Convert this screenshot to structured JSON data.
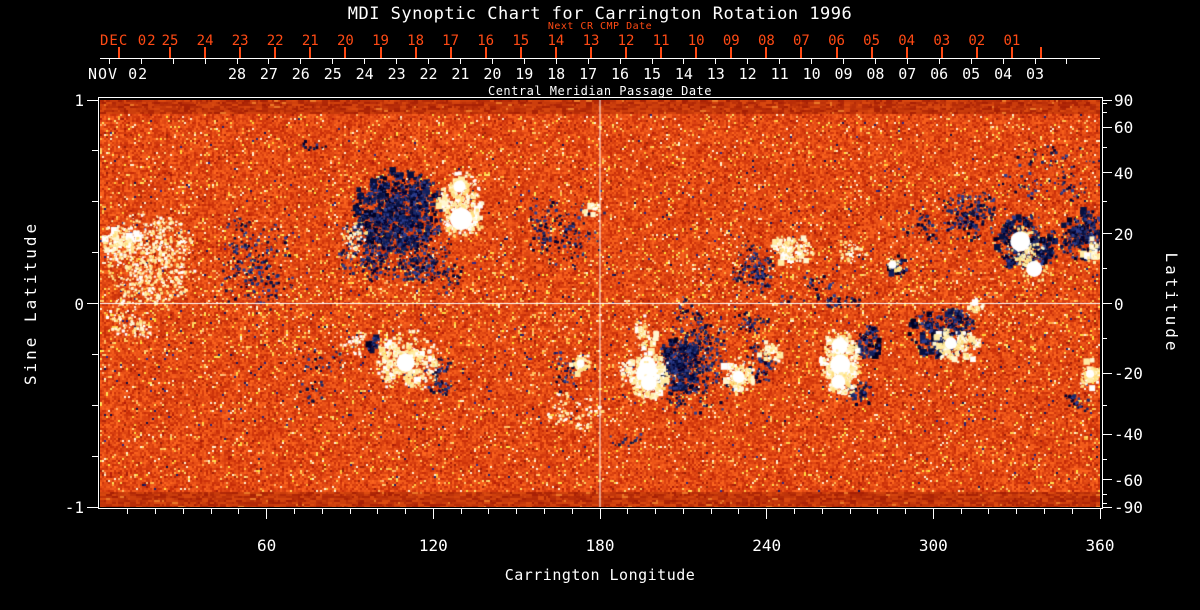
{
  "title": "MDI Synoptic Chart for Carrington Rotation 1996",
  "colors": {
    "background": "#000000",
    "foreground": "#ffffff",
    "next_cr_accent": "#ff4a14",
    "quiet_sun_orange": "#e2431a",
    "negative_polarity_blue": "#0a1448",
    "positive_polarity_white": "#ffffff"
  },
  "top_axes": {
    "next_cr": {
      "title": "Next CR CMP Date",
      "month_label": "DEC 02",
      "day_ticks": [
        "25",
        "24",
        "23",
        "22",
        "21",
        "20",
        "19",
        "18",
        "17",
        "16",
        "15",
        "14",
        "13",
        "12",
        "11",
        "10",
        "09",
        "08",
        "07",
        "06",
        "05",
        "04",
        "03",
        "02",
        "01"
      ]
    },
    "cmp": {
      "title": "Central Meridian Passage Date",
      "month_label": "NOV 02",
      "day_ticks": [
        "28",
        "27",
        "26",
        "25",
        "24",
        "23",
        "22",
        "21",
        "20",
        "19",
        "18",
        "17",
        "16",
        "15",
        "14",
        "13",
        "12",
        "11",
        "10",
        "09",
        "08",
        "07",
        "06",
        "05",
        "04",
        "03"
      ]
    }
  },
  "chart_data": {
    "type": "heatmap",
    "title": "MDI Synoptic Chart for Carrington Rotation 1996",
    "xlabel": "Carrington Longitude",
    "ylabel_left": "Sine Latitude",
    "ylabel_right": "Latitude",
    "xlim": [
      0,
      360
    ],
    "ylim": [
      -1,
      1
    ],
    "x_tick_labels": [
      "60",
      "120",
      "180",
      "240",
      "300",
      "360"
    ],
    "x_minor_tick_step_deg": 10,
    "y_left_tick_labels": [
      "1",
      "0",
      "-1"
    ],
    "y_left_minor_tick_step": 0.25,
    "y_right_tick_labels": [
      "90",
      "60",
      "40",
      "20",
      "0",
      "-20",
      "-40",
      "-60",
      "-90"
    ],
    "y_right_minor_ticks_deg": [
      10,
      30,
      50,
      70,
      80,
      -10,
      -30,
      -50,
      -70,
      -80
    ],
    "grid_lines": {
      "longitude": 180,
      "sine_latitude": 0
    },
    "colormap_meaning": "orange = quiet Sun field, dark blue/black = negative magnetic polarity, white/yellow = positive magnetic polarity",
    "active_regions": [
      {
        "lon": 16,
        "slat": 0.2,
        "rlon": 18,
        "rsin": 0.25,
        "pol": "pos",
        "den": 0.5
      },
      {
        "lon": 8,
        "slat": 0.29,
        "rlon": 7,
        "rsin": 0.09,
        "pol": "pos",
        "den": 0.8
      },
      {
        "lon": 9,
        "slat": -0.1,
        "rlon": 10,
        "rsin": 0.1,
        "pol": "pos",
        "den": 0.3
      },
      {
        "lon": 55,
        "slat": 0.2,
        "rlon": 15,
        "rsin": 0.24,
        "pol": "neg",
        "den": 0.2
      },
      {
        "lon": 107,
        "slat": 0.46,
        "rlon": 16,
        "rsin": 0.2,
        "pol": "neg",
        "den": 0.95
      },
      {
        "lon": 104,
        "slat": 0.26,
        "rlon": 22,
        "rsin": 0.16,
        "pol": "neg",
        "den": 0.45
      },
      {
        "lon": 118,
        "slat": 0.14,
        "rlon": 14,
        "rsin": 0.09,
        "pol": "neg",
        "den": 0.3
      },
      {
        "lon": 130,
        "slat": 0.49,
        "rlon": 8,
        "rsin": 0.16,
        "pol": "pos",
        "den": 0.9
      },
      {
        "lon": 90,
        "slat": 0.31,
        "rlon": 6,
        "rsin": 0.1,
        "pol": "pos",
        "den": 0.35
      },
      {
        "lon": 167,
        "slat": 0.37,
        "rlon": 16,
        "rsin": 0.19,
        "pol": "neg",
        "den": 0.2
      },
      {
        "lon": 177,
        "slat": 0.45,
        "rlon": 3,
        "rsin": 0.05,
        "pol": "pos",
        "den": 0.8
      },
      {
        "lon": 234,
        "slat": 0.17,
        "rlon": 9,
        "rsin": 0.14,
        "pol": "neg",
        "den": 0.4
      },
      {
        "lon": 248.5,
        "slat": 0.26,
        "rlon": 8,
        "rsin": 0.08,
        "pol": "pos",
        "den": 0.75
      },
      {
        "lon": 270,
        "slat": 0.27,
        "rlon": 7,
        "rsin": 0.06,
        "pol": "pos",
        "den": 0.4
      },
      {
        "lon": 287,
        "slat": 0.185,
        "rlon": 3.5,
        "rsin": 0.055,
        "pol": "neg",
        "den": 0.95
      },
      {
        "lon": 258,
        "slat": 0.05,
        "rlon": 18,
        "rsin": 0.09,
        "pol": "neg",
        "den": 0.15
      },
      {
        "lon": 295,
        "slat": 0.37,
        "rlon": 6,
        "rsin": 0.08,
        "pol": "neg",
        "den": 0.35
      },
      {
        "lon": 313,
        "slat": 0.44,
        "rlon": 11,
        "rsin": 0.13,
        "pol": "neg",
        "den": 0.5
      },
      {
        "lon": 333,
        "slat": 0.3,
        "rlon": 11,
        "rsin": 0.14,
        "pol": "neg",
        "den": 0.75
      },
      {
        "lon": 334,
        "slat": 0.24,
        "rlon": 6,
        "rsin": 0.1,
        "pol": "pos",
        "den": 0.5
      },
      {
        "lon": 353.5,
        "slat": 0.335,
        "rlon": 8,
        "rsin": 0.13,
        "pol": "neg",
        "den": 0.8
      },
      {
        "lon": 357.5,
        "slat": 0.265,
        "rlon": 4,
        "rsin": 0.06,
        "pol": "pos",
        "den": 0.8
      },
      {
        "lon": 339,
        "slat": 0.66,
        "rlon": 18,
        "rsin": 0.16,
        "pol": "neg",
        "den": 0.08
      },
      {
        "lon": 352,
        "slat": 0.58,
        "rlon": 8,
        "rsin": 0.1,
        "pol": "neg",
        "den": 0.12
      },
      {
        "lon": 73,
        "slat": 0.73,
        "rlon": 10,
        "rsin": 0.08,
        "pol": "neg",
        "den": 0.06
      },
      {
        "lon": 110.5,
        "slat": -0.275,
        "rlon": 12,
        "rsin": 0.15,
        "pol": "pos",
        "den": 0.6
      },
      {
        "lon": 124,
        "slat": -0.35,
        "rlon": 8,
        "rsin": 0.1,
        "pol": "neg",
        "den": 0.35
      },
      {
        "lon": 91,
        "slat": -0.185,
        "rlon": 5,
        "rsin": 0.07,
        "pol": "pos",
        "den": 0.5
      },
      {
        "lon": 99,
        "slat": -0.19,
        "rlon": 3,
        "rsin": 0.05,
        "pol": "neg",
        "den": 0.6
      },
      {
        "lon": 80,
        "slat": -0.33,
        "rlon": 12,
        "rsin": 0.15,
        "pol": "neg",
        "den": 0.1
      },
      {
        "lon": 173,
        "slat": -0.295,
        "rlon": 3.5,
        "rsin": 0.06,
        "pol": "pos",
        "den": 0.7
      },
      {
        "lon": 168,
        "slat": -0.33,
        "rlon": 8,
        "rsin": 0.1,
        "pol": "neg",
        "den": 0.2
      },
      {
        "lon": 171,
        "slat": -0.52,
        "rlon": 10,
        "rsin": 0.12,
        "pol": "pos",
        "den": 0.25
      },
      {
        "lon": 197.3,
        "slat": -0.34,
        "rlon": 7,
        "rsin": 0.13,
        "pol": "pos",
        "den": 0.9
      },
      {
        "lon": 192,
        "slat": -0.38,
        "rlon": 6,
        "rsin": 0.12,
        "pol": "pos",
        "den": 0.4
      },
      {
        "lon": 196,
        "slat": -0.14,
        "rlon": 5,
        "rsin": 0.08,
        "pol": "pos",
        "den": 0.6
      },
      {
        "lon": 208,
        "slat": -0.3,
        "rlon": 8,
        "rsin": 0.14,
        "pol": "neg",
        "den": 0.9
      },
      {
        "lon": 214,
        "slat": -0.32,
        "rlon": 14,
        "rsin": 0.25,
        "pol": "neg",
        "den": 0.35
      },
      {
        "lon": 212,
        "slat": -0.05,
        "rlon": 5,
        "rsin": 0.1,
        "pol": "neg",
        "den": 0.25
      },
      {
        "lon": 235,
        "slat": -0.06,
        "rlon": 6,
        "rsin": 0.08,
        "pol": "neg",
        "den": 0.3
      },
      {
        "lon": 190,
        "slat": -0.62,
        "rlon": 10,
        "rsin": 0.08,
        "pol": "neg",
        "den": 0.07
      },
      {
        "lon": 229.9,
        "slat": -0.35,
        "rlon": 6,
        "rsin": 0.1,
        "pol": "pos",
        "den": 0.75
      },
      {
        "lon": 236.4,
        "slat": -0.285,
        "rlon": 7,
        "rsin": 0.1,
        "pol": "neg",
        "den": 0.4
      },
      {
        "lon": 241,
        "slat": -0.245,
        "rlon": 4,
        "rsin": 0.06,
        "pol": "pos",
        "den": 0.7
      },
      {
        "lon": 266.5,
        "slat": -0.285,
        "rlon": 7,
        "rsin": 0.17,
        "pol": "pos",
        "den": 0.95
      },
      {
        "lon": 276,
        "slat": -0.21,
        "rlon": 5,
        "rsin": 0.08,
        "pol": "neg",
        "den": 0.6
      },
      {
        "lon": 273,
        "slat": -0.445,
        "rlon": 5,
        "rsin": 0.07,
        "pol": "neg",
        "den": 0.5
      },
      {
        "lon": 277.5,
        "slat": -0.125,
        "rlon": 4,
        "rsin": 0.06,
        "pol": "neg",
        "den": 0.5
      },
      {
        "lon": 302,
        "slat": -0.145,
        "rlon": 13,
        "rsin": 0.12,
        "pol": "neg",
        "den": 0.6
      },
      {
        "lon": 306,
        "slat": -0.2,
        "rlon": 6,
        "rsin": 0.09,
        "pol": "pos",
        "den": 0.8
      },
      {
        "lon": 313.5,
        "slat": -0.21,
        "rlon": 4,
        "rsin": 0.07,
        "pol": "pos",
        "den": 0.6
      },
      {
        "lon": 315,
        "slat": 0.005,
        "rlon": 3,
        "rsin": 0.05,
        "pol": "pos",
        "den": 0.6
      },
      {
        "lon": 309,
        "slat": -0.07,
        "rlon": 6,
        "rsin": 0.08,
        "pol": "neg",
        "den": 0.3
      },
      {
        "lon": 356.4,
        "slat": -0.345,
        "rlon": 4,
        "rsin": 0.08,
        "pol": "pos",
        "den": 0.7
      },
      {
        "lon": 352,
        "slat": -0.47,
        "rlon": 6,
        "rsin": 0.08,
        "pol": "neg",
        "den": 0.25
      }
    ],
    "bright_cores": [
      {
        "lon": 130,
        "slat": 0.415,
        "r": 11
      },
      {
        "lon": 129.4,
        "slat": 0.575,
        "r": 6
      },
      {
        "lon": 285.3,
        "slat": 0.19,
        "r": 4
      },
      {
        "lon": 331.3,
        "slat": 0.305,
        "r": 10
      },
      {
        "lon": 336.3,
        "slat": 0.17,
        "r": 8
      },
      {
        "lon": 110,
        "slat": -0.29,
        "r": 9
      },
      {
        "lon": 197,
        "slat": -0.3,
        "r": 8
      },
      {
        "lon": 197,
        "slat": -0.345,
        "r": 11
      },
      {
        "lon": 197.6,
        "slat": -0.39,
        "r": 8
      },
      {
        "lon": 229.9,
        "slat": -0.36,
        "r": 6
      },
      {
        "lon": 266.2,
        "slat": -0.21,
        "r": 8
      },
      {
        "lon": 266.5,
        "slat": -0.3,
        "r": 10
      },
      {
        "lon": 265.8,
        "slat": -0.385,
        "r": 7
      },
      {
        "lon": 306.3,
        "slat": -0.195,
        "r": 6
      },
      {
        "lon": 173,
        "slat": -0.295,
        "r": 4
      },
      {
        "lon": 356.4,
        "slat": -0.345,
        "r": 4
      }
    ]
  }
}
